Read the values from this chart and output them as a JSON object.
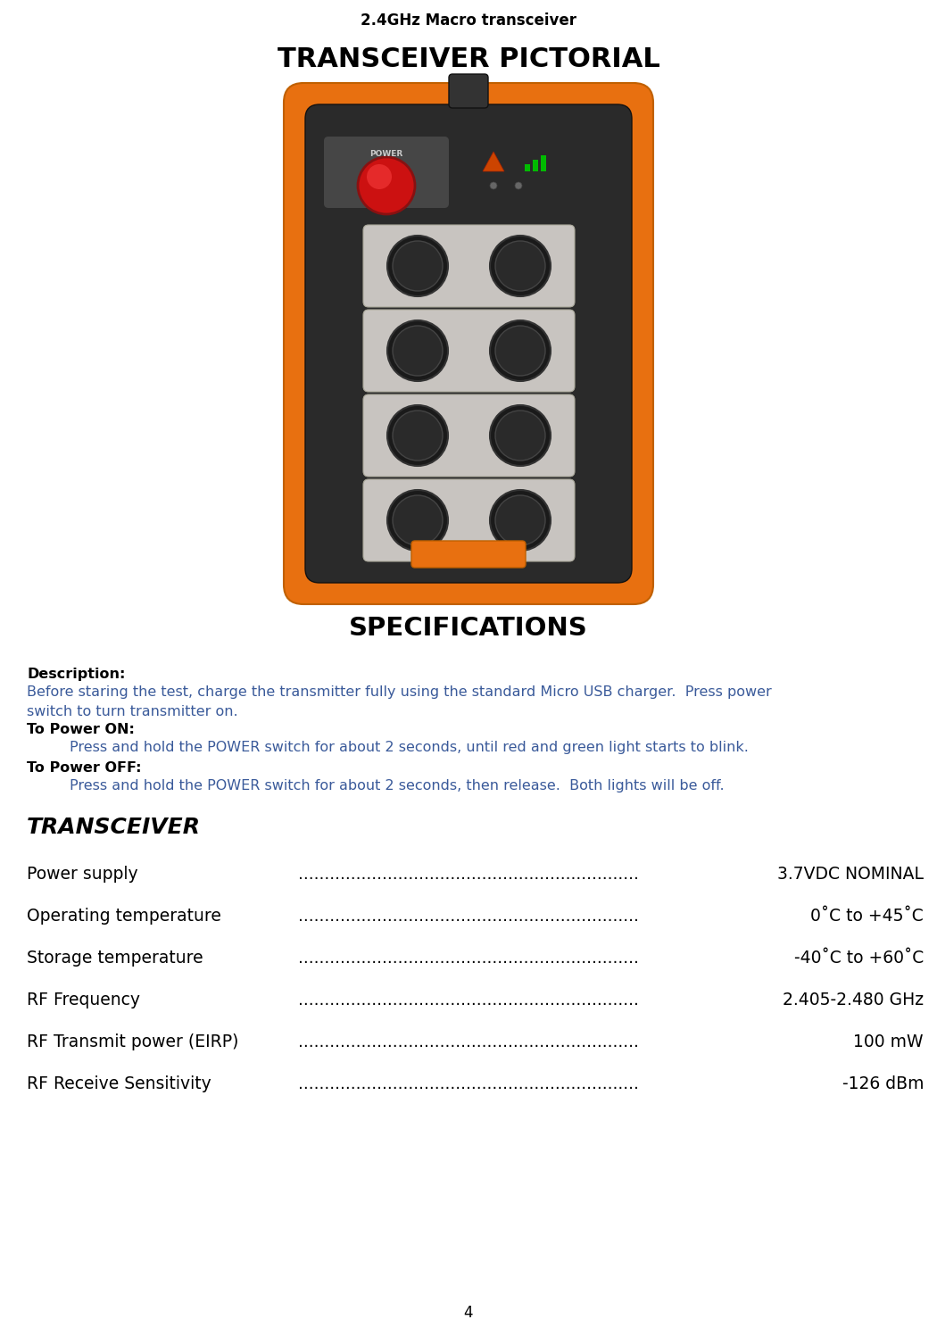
{
  "header_title": "2.4GHz Macro transceiver",
  "section_title": "TRANSCEIVER PICTORIAL",
  "specs_title": "SPECIFICATIONS",
  "transceiver_heading": "TRANSCEIVER",
  "description_label": "Description:",
  "description_line1": "Before staring the test, charge the transmitter fully using the standard Micro USB charger.  Press power",
  "description_line2": "switch to turn transmitter on.",
  "power_on_label": "To Power ON:",
  "power_on_text": "Press and hold the POWER switch for about 2 seconds, until red and green light starts to blink.",
  "power_off_label": "To Power OFF:",
  "power_off_text": "Press and hold the POWER switch for about 2 seconds, then release.  Both lights will be off.",
  "specs": [
    {
      "label": "Power supply  ",
      "value": " 3.7VDC NOMINAL"
    },
    {
      "label": "Operating temperature",
      "value": "  0˚C to +45˚C"
    },
    {
      "label": "Storage temperature",
      "value": "-40˚C to +60˚C"
    },
    {
      "label": "RF Frequency",
      "value": " 2.405-2.480 GHz"
    },
    {
      "label": "RF Transmit power (EIRP)",
      "value": "  100 mW"
    },
    {
      "label": "RF Receive Sensitivity ",
      "value": "  -126 dBm"
    }
  ],
  "page_number": "4",
  "bg_color": "#ffffff",
  "text_color_black": "#000000",
  "text_color_blue": "#3a5a9a",
  "remote_body_dark": "#2a2a2a",
  "remote_body_mid": "#3a3a3a",
  "remote_orange": "#e87010",
  "remote_btn_bg": "#d0ccc8",
  "remote_btn_dark": "#1a1a1a",
  "remote_red": "#dd2222"
}
